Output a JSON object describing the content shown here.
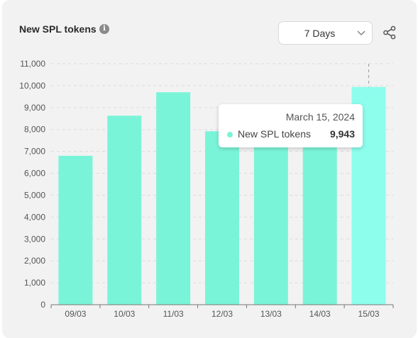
{
  "header": {
    "title": "New SPL tokens",
    "info_icon": "info-icon",
    "range_select": {
      "selected": "7 Days",
      "icon": "chevron-down-icon"
    },
    "share_icon": "share-icon"
  },
  "tooltip": {
    "date": "March 15, 2024",
    "series": "New SPL tokens",
    "value": "9,943"
  },
  "colors": {
    "bar": "#7af4d8",
    "bar_highlight": "#8dfdec",
    "background": "#f2f2f2"
  },
  "chart_data": {
    "type": "bar",
    "categories": [
      "09/03",
      "10/03",
      "11/03",
      "12/03",
      "13/03",
      "14/03",
      "15/03"
    ],
    "series": [
      {
        "name": "New SPL tokens",
        "values": [
          6800,
          8630,
          9700,
          7920,
          8050,
          8100,
          9943
        ]
      }
    ],
    "ylim": [
      0,
      11000
    ],
    "yticks": [
      "0",
      "1,000",
      "2,000",
      "3,000",
      "4,000",
      "5,000",
      "6,000",
      "7,000",
      "8,000",
      "9,000",
      "10,000",
      "11,000"
    ],
    "grid": true,
    "highlighted_category": "15/03"
  }
}
